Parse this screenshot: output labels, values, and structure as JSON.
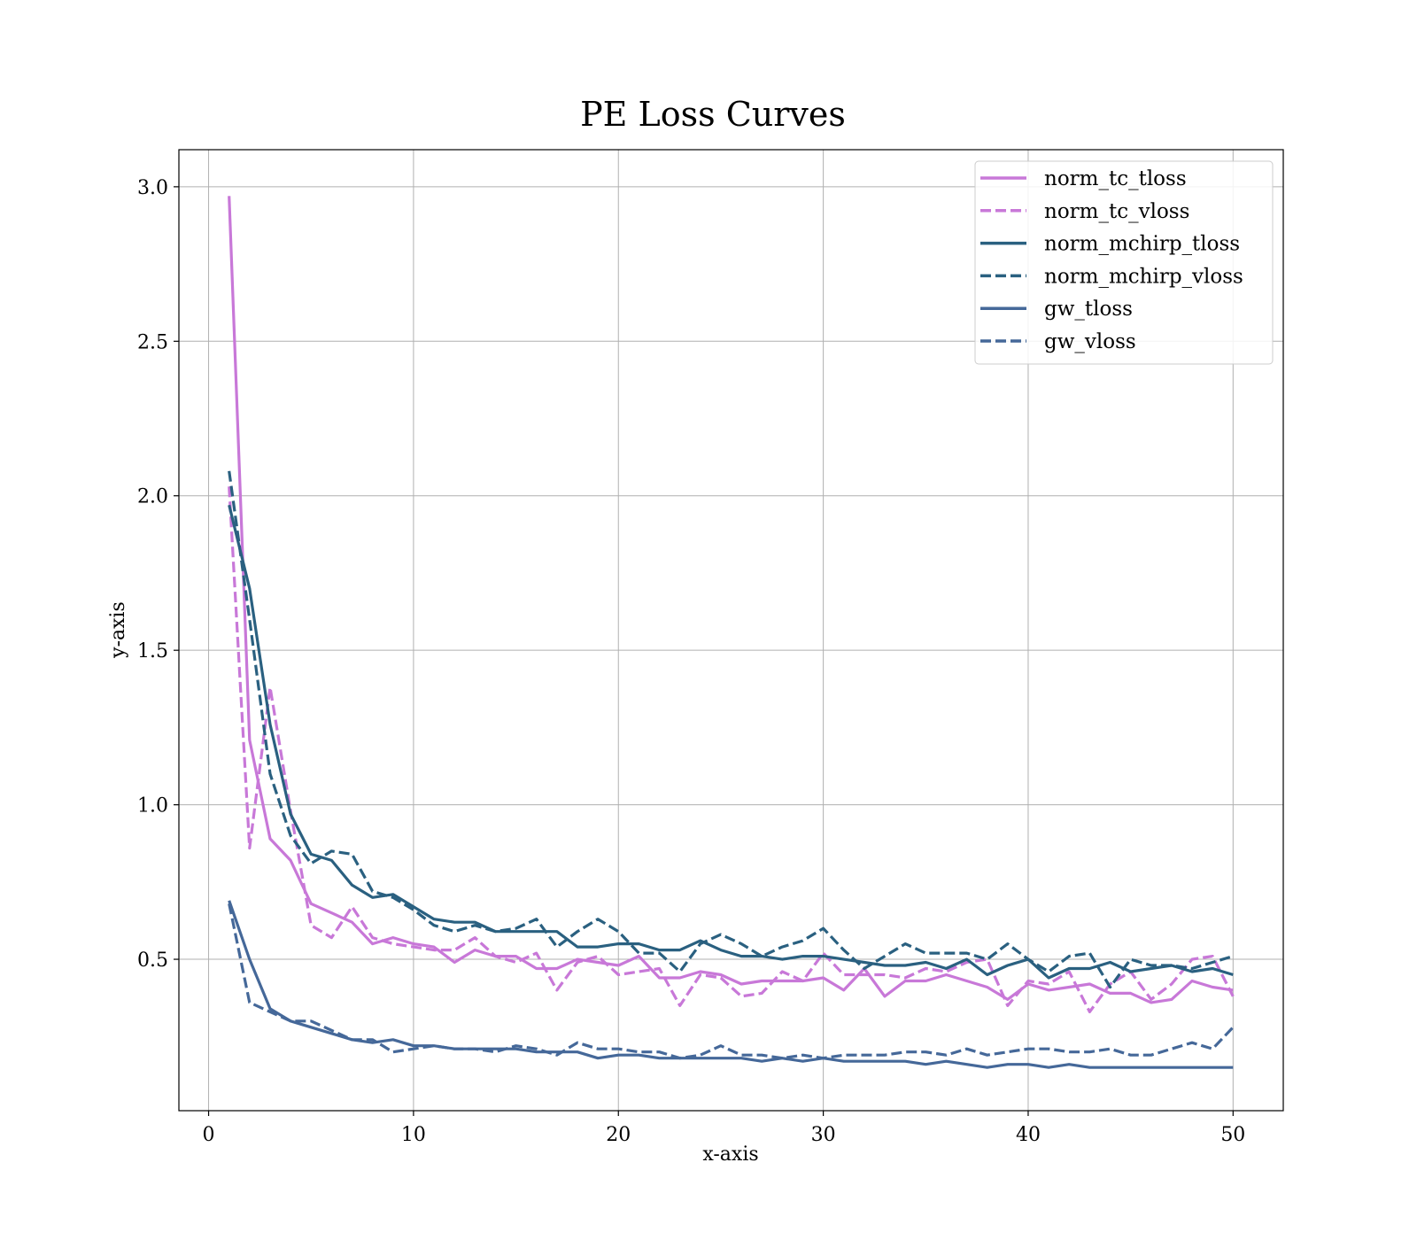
{
  "chart_data": {
    "type": "line",
    "title": "PE Loss Curves",
    "xlabel": "x-axis",
    "ylabel": "y-axis",
    "xlim": [
      -1.45,
      52.45
    ],
    "ylim": [
      0.01,
      3.12
    ],
    "xticks": [
      0,
      10,
      20,
      30,
      40,
      50
    ],
    "yticks": [
      0.5,
      1.0,
      1.5,
      2.0,
      2.5,
      3.0
    ],
    "xtick_labels": [
      "0",
      "10",
      "20",
      "30",
      "40",
      "50"
    ],
    "ytick_labels": [
      "0.5",
      "1.0",
      "1.5",
      "2.0",
      "2.5",
      "3.0"
    ],
    "grid": true,
    "legend_position": "top-right",
    "x": [
      1,
      2,
      3,
      4,
      5,
      6,
      7,
      8,
      9,
      10,
      11,
      12,
      13,
      14,
      15,
      16,
      17,
      18,
      19,
      20,
      21,
      22,
      23,
      24,
      25,
      26,
      27,
      28,
      29,
      30,
      31,
      32,
      33,
      34,
      35,
      36,
      37,
      38,
      39,
      40,
      41,
      42,
      43,
      44,
      45,
      46,
      47,
      48,
      49,
      50
    ],
    "series": [
      {
        "name": "norm_tc_tloss",
        "color": "#c878d8",
        "dash": "solid",
        "values": [
          2.97,
          1.21,
          0.89,
          0.82,
          0.68,
          0.65,
          0.62,
          0.55,
          0.57,
          0.55,
          0.54,
          0.49,
          0.53,
          0.51,
          0.51,
          0.47,
          0.47,
          0.5,
          0.49,
          0.48,
          0.51,
          0.44,
          0.44,
          0.46,
          0.45,
          0.42,
          0.43,
          0.43,
          0.43,
          0.44,
          0.4,
          0.47,
          0.38,
          0.43,
          0.43,
          0.45,
          0.43,
          0.41,
          0.37,
          0.42,
          0.4,
          0.41,
          0.42,
          0.39,
          0.39,
          0.36,
          0.37,
          0.43,
          0.41,
          0.4
        ]
      },
      {
        "name": "norm_tc_vloss",
        "color": "#c878d8",
        "dash": "dashed",
        "values": [
          2.03,
          0.86,
          1.38,
          0.98,
          0.61,
          0.57,
          0.67,
          0.57,
          0.55,
          0.54,
          0.53,
          0.53,
          0.57,
          0.51,
          0.49,
          0.52,
          0.4,
          0.49,
          0.51,
          0.45,
          0.46,
          0.47,
          0.35,
          0.45,
          0.44,
          0.38,
          0.39,
          0.46,
          0.43,
          0.52,
          0.45,
          0.45,
          0.45,
          0.44,
          0.47,
          0.46,
          0.49,
          0.5,
          0.35,
          0.43,
          0.42,
          0.46,
          0.33,
          0.42,
          0.46,
          0.37,
          0.42,
          0.5,
          0.51,
          0.38
        ]
      },
      {
        "name": "norm_mchirp_tloss",
        "color": "#2a6080",
        "dash": "solid",
        "values": [
          1.97,
          1.7,
          1.26,
          0.97,
          0.84,
          0.82,
          0.74,
          0.7,
          0.71,
          0.67,
          0.63,
          0.62,
          0.62,
          0.59,
          0.59,
          0.59,
          0.59,
          0.54,
          0.54,
          0.55,
          0.55,
          0.53,
          0.53,
          0.56,
          0.53,
          0.51,
          0.51,
          0.5,
          0.51,
          0.51,
          0.5,
          0.49,
          0.48,
          0.48,
          0.49,
          0.47,
          0.5,
          0.45,
          0.48,
          0.5,
          0.44,
          0.47,
          0.47,
          0.49,
          0.46,
          0.47,
          0.48,
          0.46,
          0.47,
          0.45
        ]
      },
      {
        "name": "norm_mchirp_vloss",
        "color": "#2a6080",
        "dash": "dashed",
        "values": [
          2.08,
          1.6,
          1.1,
          0.9,
          0.81,
          0.85,
          0.84,
          0.72,
          0.7,
          0.66,
          0.61,
          0.59,
          0.61,
          0.59,
          0.6,
          0.63,
          0.54,
          0.59,
          0.63,
          0.59,
          0.52,
          0.52,
          0.46,
          0.55,
          0.58,
          0.55,
          0.51,
          0.54,
          0.56,
          0.6,
          0.53,
          0.47,
          0.51,
          0.55,
          0.52,
          0.52,
          0.52,
          0.5,
          0.55,
          0.5,
          0.46,
          0.51,
          0.52,
          0.41,
          0.5,
          0.48,
          0.48,
          0.47,
          0.49,
          0.51
        ]
      },
      {
        "name": "gw_tloss",
        "color": "#456899",
        "dash": "solid",
        "values": [
          0.69,
          0.5,
          0.34,
          0.3,
          0.28,
          0.26,
          0.24,
          0.23,
          0.24,
          0.22,
          0.22,
          0.21,
          0.21,
          0.21,
          0.21,
          0.2,
          0.2,
          0.2,
          0.18,
          0.19,
          0.19,
          0.18,
          0.18,
          0.18,
          0.18,
          0.18,
          0.17,
          0.18,
          0.17,
          0.18,
          0.17,
          0.17,
          0.17,
          0.17,
          0.16,
          0.17,
          0.16,
          0.15,
          0.16,
          0.16,
          0.15,
          0.16,
          0.15,
          0.15,
          0.15,
          0.15,
          0.15,
          0.15,
          0.15,
          0.15
        ]
      },
      {
        "name": "gw_vloss",
        "color": "#456899",
        "dash": "dashed",
        "values": [
          0.68,
          0.36,
          0.33,
          0.3,
          0.3,
          0.27,
          0.24,
          0.24,
          0.2,
          0.21,
          0.22,
          0.21,
          0.21,
          0.2,
          0.22,
          0.21,
          0.19,
          0.23,
          0.21,
          0.21,
          0.2,
          0.2,
          0.18,
          0.19,
          0.22,
          0.19,
          0.19,
          0.18,
          0.19,
          0.18,
          0.19,
          0.19,
          0.19,
          0.2,
          0.2,
          0.19,
          0.21,
          0.19,
          0.2,
          0.21,
          0.21,
          0.2,
          0.2,
          0.21,
          0.19,
          0.19,
          0.21,
          0.23,
          0.21,
          0.28
        ]
      }
    ]
  }
}
